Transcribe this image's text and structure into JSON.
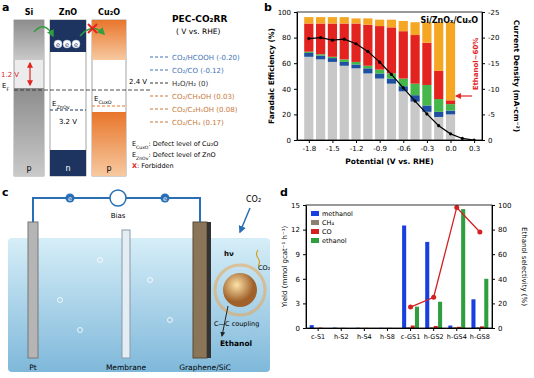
{
  "chart_data": [
    {
      "type": "bar",
      "panel_label": "b",
      "title": "Si/ZnOₓ/CuₓO",
      "x_label": "Potential (V vs. RHE)",
      "y_label": "Faradaic Efficiency (%)",
      "y2_label": "Current Density (mA·cm⁻²)",
      "x": [
        -1.8,
        -1.65,
        -1.5,
        -1.35,
        -1.2,
        -1.05,
        -0.9,
        -0.75,
        -0.6,
        -0.45,
        -0.3,
        -0.15,
        0,
        0.15,
        0.3
      ],
      "xlim": [
        -1.95,
        0.4
      ],
      "xticks": [
        -1.8,
        -1.5,
        -1.2,
        -0.9,
        -0.6,
        -0.3,
        {
          "value": 0,
          "label": "0.0"
        },
        0.3
      ],
      "ylim": [
        0,
        100
      ],
      "yticks": [
        0,
        20,
        40,
        60,
        80,
        100
      ],
      "y2lim": [
        0,
        -25
      ],
      "y2ticks": [
        0,
        -5,
        -10,
        -15,
        -20,
        -25
      ],
      "stacked": true,
      "series": [
        {
          "color": "#c8c8c8",
          "values": [
            65,
            63,
            61,
            58,
            56,
            52,
            48,
            44,
            38,
            30,
            22,
            18,
            20,
            null,
            null
          ]
        },
        {
          "color": "#1f4fa0",
          "values": [
            3,
            3,
            3,
            3,
            3,
            4,
            4,
            4,
            4,
            5,
            5,
            4,
            3,
            null,
            null
          ]
        },
        {
          "color": "#45b649",
          "values": [
            1,
            1,
            1,
            2,
            2,
            2,
            3,
            4,
            6,
            9,
            16,
            10,
            5,
            null,
            null
          ]
        },
        {
          "color": "#e3231f",
          "values": [
            22,
            24,
            26,
            28,
            30,
            32,
            34,
            36,
            37,
            38,
            33,
            22,
            3,
            null,
            null
          ]
        },
        {
          "color": "#f5a623",
          "values": [
            5,
            5,
            5,
            5,
            4,
            5,
            5,
            6,
            8,
            10,
            16,
            38,
            61,
            null,
            null
          ]
        },
        {
          "type": "line",
          "axis": "y2",
          "color": "#000000",
          "marker": "circle",
          "values": [
            -19.8,
            -20,
            -19.5,
            -19.7,
            -18.8,
            -17.3,
            -15.2,
            -12.8,
            -10.2,
            -7.6,
            -5.1,
            -2.8,
            -1.2,
            -0.3,
            0
          ]
        }
      ],
      "annotations": [
        {
          "text": "Ethanol~60%",
          "color": "#e3231f"
        }
      ]
    },
    {
      "type": "bar",
      "panel_label": "d",
      "y_label": "Yield (mmol gcat⁻¹ h⁻¹)",
      "y2_label": "Ethanol selectivity (%)",
      "categories": [
        "c-S1",
        "h-S2",
        "h-S4",
        "h-S8",
        "c-GS1",
        "h-GS2",
        "h-GS4",
        "h-GS8"
      ],
      "ylim": [
        0,
        15
      ],
      "yticks": [
        0,
        3,
        6,
        9,
        12,
        15
      ],
      "y2lim": [
        0,
        100
      ],
      "y2ticks": [
        0,
        20,
        40,
        60,
        80,
        100
      ],
      "legend": "upper-left",
      "series": [
        {
          "name": "methanol",
          "color": "#1a3fe0",
          "values": [
            0.35,
            0.05,
            0.03,
            0.02,
            12.5,
            10.5,
            0.3,
            3.5
          ]
        },
        {
          "name": "CH₄",
          "color": "#8c7f70",
          "values": [
            0.02,
            0.01,
            0.01,
            0.01,
            0.1,
            0.1,
            0.1,
            0.1
          ]
        },
        {
          "name": "CO",
          "color": "#d42020",
          "values": [
            0.05,
            0.02,
            0.02,
            0.02,
            0.3,
            0.25,
            0.15,
            0.2
          ]
        },
        {
          "name": "ethanol",
          "color": "#2e9e3e",
          "values": [
            0,
            0,
            0,
            0,
            2.6,
            3.2,
            14.5,
            6.0
          ]
        },
        {
          "type": "line",
          "axis": "y2",
          "color": "#d42020",
          "marker": "circle",
          "values": [
            null,
            null,
            null,
            null,
            17,
            25,
            98,
            78
          ]
        }
      ]
    }
  ],
  "diagram_a": {
    "panel_label": "a",
    "materials": [
      {
        "label": "Si",
        "doping": "p"
      },
      {
        "label": "ZnO",
        "doping": "n"
      },
      {
        "label": "Cu₂O",
        "doping": "p"
      }
    ],
    "gaps": [
      "1.2 V",
      "3.2 V",
      "2.4 V"
    ],
    "fermi": {
      "base": "E",
      "sub": "F"
    },
    "defect_levels": [
      {
        "base": "E",
        "sub": "ZnOv"
      },
      {
        "base": "E",
        "sub": "CuxO"
      }
    ],
    "electron": "e",
    "title": "PEC-CO₂RR",
    "subtitle": "( V vs. RHE)",
    "reactions": [
      "CO₂/HCOOH (-0.20)",
      "CO₂/CO (-0.12)",
      "H₂O/H₂ (0)",
      "CO₂/CH₃OH (0.03)",
      "CO₂/C₂H₅OH (0.08)",
      "CO₂/CH₄ (0.17)"
    ],
    "legend": [
      {
        "symbol": {
          "base": "E",
          "sub": "CuxO"
        },
        "text": ": Defect level of Cu₂O"
      },
      {
        "symbol": {
          "base": "E",
          "sub": "ZnOv"
        },
        "text": ": Defect level of ZnO"
      },
      {
        "symbol": {
          "base": "X"
        },
        "text": ": Forbidden"
      }
    ]
  },
  "diagram_c": {
    "panel_label": "c",
    "bias": "Bias",
    "electron": "e",
    "counter_electrode": "Pt",
    "membrane": "Membrane",
    "photocathode": "Graphene/SiC",
    "reactant": "CO₂",
    "light": "hν",
    "coupling": "C—C coupling",
    "product": "Ethanol"
  }
}
